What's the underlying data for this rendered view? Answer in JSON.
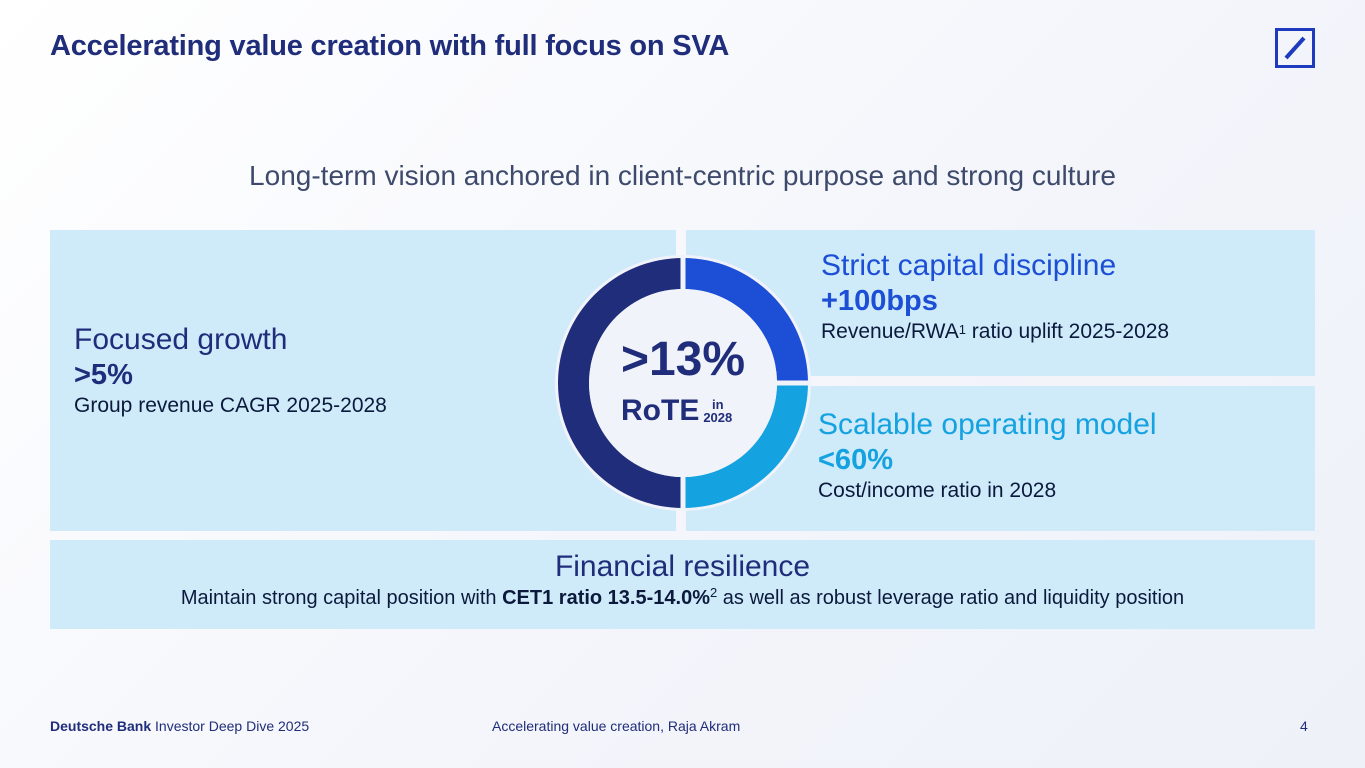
{
  "header": {
    "title": "Accelerating value creation with full focus on SVA",
    "logo_icon": "deutsche-bank-logo-icon"
  },
  "subtitle": "Long-term vision anchored in client-centric purpose and strong culture",
  "center": {
    "value": ">13%",
    "metric": "RoTE",
    "qualifier_line1": "in",
    "qualifier_line2": "2028"
  },
  "focused_growth": {
    "heading": "Focused growth",
    "value": ">5%",
    "description": "Group revenue CAGR 2025-2028"
  },
  "capital_discipline": {
    "heading": "Strict capital discipline",
    "value": "+100bps",
    "desc_before": "Revenue/RWA",
    "desc_sup": "1",
    "desc_after": " ratio uplift 2025-2028"
  },
  "operating_model": {
    "heading": "Scalable operating model",
    "value": "<60%",
    "description": "Cost/income ratio in 2028"
  },
  "financial_resilience": {
    "heading": "Financial resilience",
    "desc_before": "Maintain strong capital position with ",
    "desc_bold": "CET1 ratio 13.5-14.0%",
    "desc_sup": "2",
    "desc_after": " as well as robust leverage ratio and liquidity position"
  },
  "footer": {
    "brand": "Deutsche Bank",
    "event": " Investor Deep Dive 2025",
    "center": "Accelerating value creation, Raja Akram",
    "page": "4"
  },
  "colors": {
    "navy": "#1f2d7a",
    "blue": "#1c4fd6",
    "light_blue": "#14a2e0",
    "panel": "#cfeaf9"
  }
}
